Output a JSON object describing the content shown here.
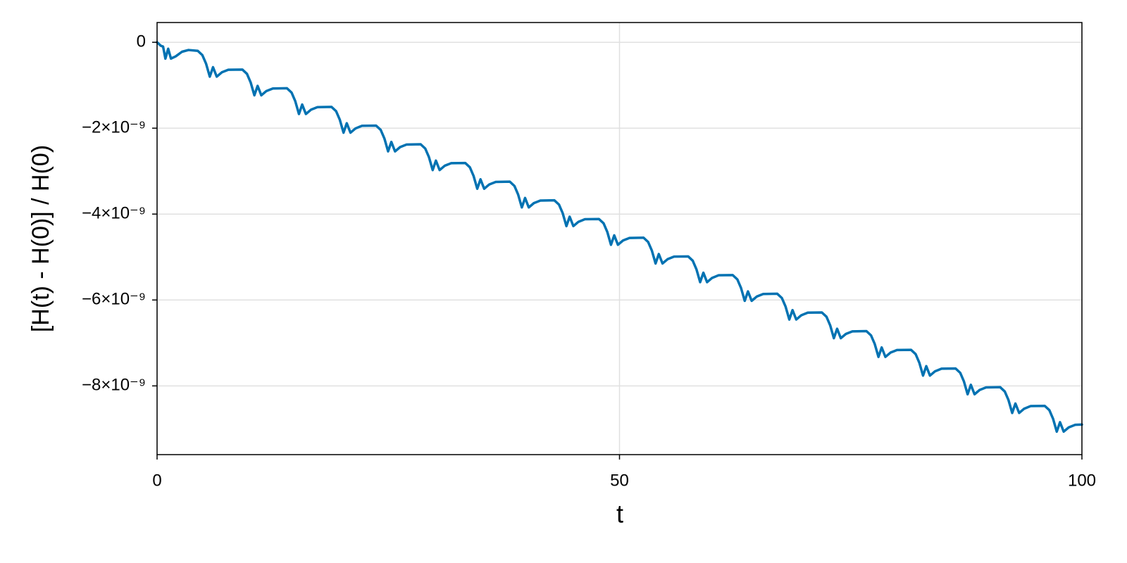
{
  "chart_data": {
    "type": "line",
    "x_label": "t",
    "y_label": "[H(t) - H(0)] / H(0)",
    "xlim": [
      0,
      100
    ],
    "xticks": [
      0,
      50,
      100
    ],
    "ylim": [
      -9.6e-09,
      4.6e-10
    ],
    "yticks": [
      {
        "value": -8e-09,
        "label": "−8×10⁻⁹"
      },
      {
        "value": -6e-09,
        "label": "−6×10⁻⁹"
      },
      {
        "value": -4e-09,
        "label": "−4×10⁻⁹"
      },
      {
        "value": -2e-09,
        "label": "−2×10⁻⁹"
      },
      0
    ],
    "grid": true,
    "series": [
      {
        "color": "#0072b2",
        "x": [
          0,
          0.4,
          0.65,
          0.9,
          1.2,
          1.5,
          2.0,
          2.7,
          3.4,
          4.4,
          4.9,
          5.3,
          5.7,
          6.05,
          6.45,
          7.0,
          7.7,
          9.22,
          9.72,
          10.12,
          10.52,
          10.87,
          11.27,
          11.82,
          12.52,
          14.04,
          14.54,
          14.94,
          15.34,
          15.69,
          16.09,
          16.64,
          17.34,
          18.86,
          19.36,
          19.76,
          20.16,
          20.51,
          20.91,
          21.46,
          22.16,
          23.68,
          24.18,
          24.58,
          24.98,
          25.33,
          25.73,
          26.28,
          26.98,
          28.5,
          29.0,
          29.4,
          29.8,
          30.15,
          30.55,
          31.1,
          31.8,
          33.32,
          33.82,
          34.22,
          34.62,
          34.97,
          35.37,
          35.92,
          36.62,
          38.14,
          38.64,
          39.04,
          39.44,
          39.79,
          40.19,
          40.74,
          41.44,
          42.96,
          43.46,
          43.86,
          44.26,
          44.61,
          45.01,
          45.56,
          46.26,
          47.78,
          48.28,
          48.68,
          49.08,
          49.43,
          49.83,
          50.38,
          51.08,
          52.6,
          53.1,
          53.5,
          53.9,
          54.25,
          54.65,
          55.2,
          55.9,
          57.42,
          57.92,
          58.32,
          58.72,
          59.07,
          59.47,
          60.02,
          60.72,
          62.24,
          62.74,
          63.14,
          63.54,
          63.89,
          64.29,
          64.84,
          65.54,
          67.06,
          67.56,
          67.96,
          68.36,
          68.71,
          69.11,
          69.66,
          70.36,
          71.88,
          72.38,
          72.78,
          73.18,
          73.53,
          73.93,
          74.48,
          75.18,
          76.7,
          77.2,
          77.6,
          78.0,
          78.35,
          78.75,
          79.3,
          80.0,
          81.52,
          82.02,
          82.42,
          82.82,
          83.17,
          83.57,
          84.12,
          84.82,
          86.34,
          86.84,
          87.24,
          87.64,
          87.99,
          88.39,
          88.94,
          89.64,
          91.16,
          91.66,
          92.06,
          92.46,
          92.81,
          93.21,
          93.76,
          94.46,
          95.98,
          96.48,
          96.88,
          97.28,
          97.63,
          98.03,
          98.58,
          99.28,
          100
        ],
        "values": [
          0,
          -8e-11,
          -1e-10,
          -3.8e-10,
          -1.5e-10,
          -3.8e-10,
          -3.3e-10,
          -2.2e-10,
          -1.8e-10,
          -2e-10,
          -3e-10,
          -5e-10,
          -8e-10,
          -5.8e-10,
          -8e-10,
          -7e-10,
          -6.4e-10,
          -6.35e-10,
          -7.35e-10,
          -9.35e-10,
          -1.235e-09,
          -1.015e-09,
          -1.235e-09,
          -1.135e-09,
          -1.075e-09,
          -1.07e-09,
          -1.17e-09,
          -1.37e-09,
          -1.67e-09,
          -1.45e-09,
          -1.67e-09,
          -1.57e-09,
          -1.51e-09,
          -1.505e-09,
          -1.605e-09,
          -1.805e-09,
          -2.105e-09,
          -1.885e-09,
          -2.105e-09,
          -2.005e-09,
          -1.945e-09,
          -1.94e-09,
          -2.04e-09,
          -2.24e-09,
          -2.54e-09,
          -2.32e-09,
          -2.54e-09,
          -2.44e-09,
          -2.38e-09,
          -2.375e-09,
          -2.475e-09,
          -2.675e-09,
          -2.975e-09,
          -2.755e-09,
          -2.975e-09,
          -2.875e-09,
          -2.815e-09,
          -2.81e-09,
          -2.91e-09,
          -3.11e-09,
          -3.41e-09,
          -3.19e-09,
          -3.41e-09,
          -3.31e-09,
          -3.25e-09,
          -3.245e-09,
          -3.345e-09,
          -3.545e-09,
          -3.845e-09,
          -3.625e-09,
          -3.845e-09,
          -3.745e-09,
          -3.685e-09,
          -3.68e-09,
          -3.78e-09,
          -3.98e-09,
          -4.28e-09,
          -4.06e-09,
          -4.28e-09,
          -4.18e-09,
          -4.12e-09,
          -4.115e-09,
          -4.215e-09,
          -4.415e-09,
          -4.715e-09,
          -4.495e-09,
          -4.715e-09,
          -4.615e-09,
          -4.555e-09,
          -4.55e-09,
          -4.65e-09,
          -4.85e-09,
          -5.15e-09,
          -4.93e-09,
          -5.15e-09,
          -5.05e-09,
          -4.99e-09,
          -4.985e-09,
          -5.085e-09,
          -5.285e-09,
          -5.585e-09,
          -5.365e-09,
          -5.585e-09,
          -5.485e-09,
          -5.425e-09,
          -5.42e-09,
          -5.52e-09,
          -5.72e-09,
          -6.02e-09,
          -5.8e-09,
          -6.02e-09,
          -5.92e-09,
          -5.86e-09,
          -5.855e-09,
          -5.955e-09,
          -6.155e-09,
          -6.455e-09,
          -6.235e-09,
          -6.455e-09,
          -6.355e-09,
          -6.295e-09,
          -6.29e-09,
          -6.39e-09,
          -6.59e-09,
          -6.89e-09,
          -6.67e-09,
          -6.89e-09,
          -6.79e-09,
          -6.73e-09,
          -6.725e-09,
          -6.825e-09,
          -7.025e-09,
          -7.325e-09,
          -7.105e-09,
          -7.325e-09,
          -7.225e-09,
          -7.165e-09,
          -7.16e-09,
          -7.26e-09,
          -7.46e-09,
          -7.76e-09,
          -7.54e-09,
          -7.76e-09,
          -7.66e-09,
          -7.6e-09,
          -7.595e-09,
          -7.695e-09,
          -7.895e-09,
          -8.195e-09,
          -7.975e-09,
          -8.195e-09,
          -8.095e-09,
          -8.035e-09,
          -8.03e-09,
          -8.13e-09,
          -8.33e-09,
          -8.63e-09,
          -8.41e-09,
          -8.63e-09,
          -8.53e-09,
          -8.47e-09,
          -8.465e-09,
          -8.565e-09,
          -8.765e-09,
          -9.065e-09,
          -8.845e-09,
          -9.065e-09,
          -8.965e-09,
          -8.905e-09,
          -8.9e-09
        ]
      }
    ]
  }
}
